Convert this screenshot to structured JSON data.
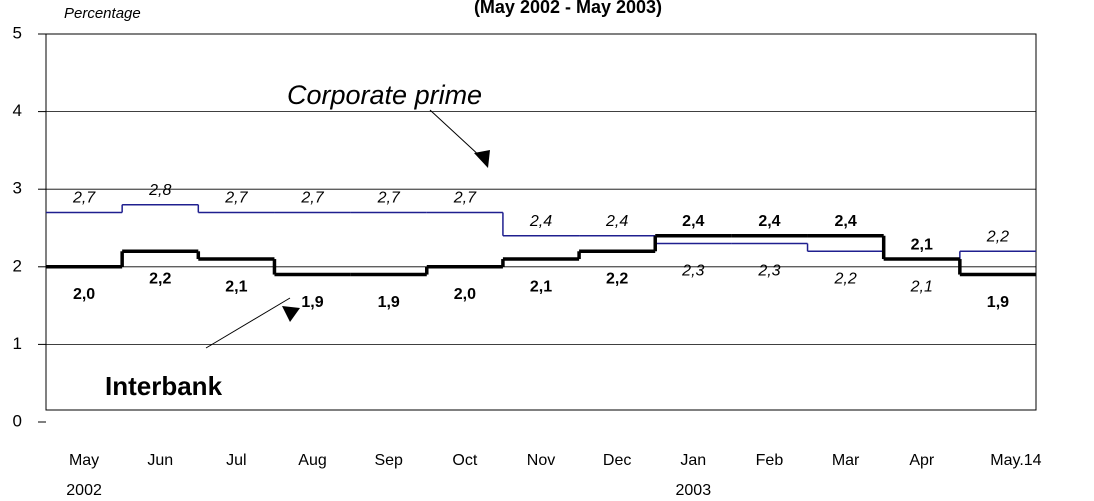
{
  "chart_data": {
    "type": "step",
    "title": "(May 2002 - May 2003)",
    "y_label": "Percentage",
    "categories": [
      "May\n2002",
      "Jun",
      "Jul",
      "Aug",
      "Sep",
      "Oct",
      "Nov",
      "Dec",
      "Jan\n2003",
      "Feb",
      "Mar",
      "Apr",
      "May.14"
    ],
    "series": [
      {
        "name": "Corporate prime",
        "color": "#1f1f8f",
        "values": [
          2.7,
          2.8,
          2.7,
          2.7,
          2.7,
          2.7,
          2.4,
          2.4,
          2.3,
          2.3,
          2.2,
          2.1,
          2.2
        ],
        "value_labels": [
          "2,7",
          "2,8",
          "2,7",
          "2,7",
          "2,7",
          "2,7",
          "2,4",
          "2,4",
          "2,3",
          "2,3",
          "2,2",
          "2,1",
          "2,2"
        ]
      },
      {
        "name": "Interbank",
        "color": "#000000",
        "values": [
          2.0,
          2.2,
          2.1,
          1.9,
          1.9,
          2.0,
          2.1,
          2.2,
          2.4,
          2.4,
          2.4,
          2.1,
          1.9
        ],
        "value_labels": [
          "2,0",
          "2,2",
          "2,1",
          "1,9",
          "1,9",
          "2,0",
          "2,1",
          "2,2",
          "2,4",
          "2,4",
          "2,4",
          "2,1",
          "1,9"
        ]
      }
    ],
    "ylim": [
      0,
      5
    ],
    "yticks": [
      0,
      1,
      2,
      3,
      4,
      5
    ],
    "grid": true
  }
}
